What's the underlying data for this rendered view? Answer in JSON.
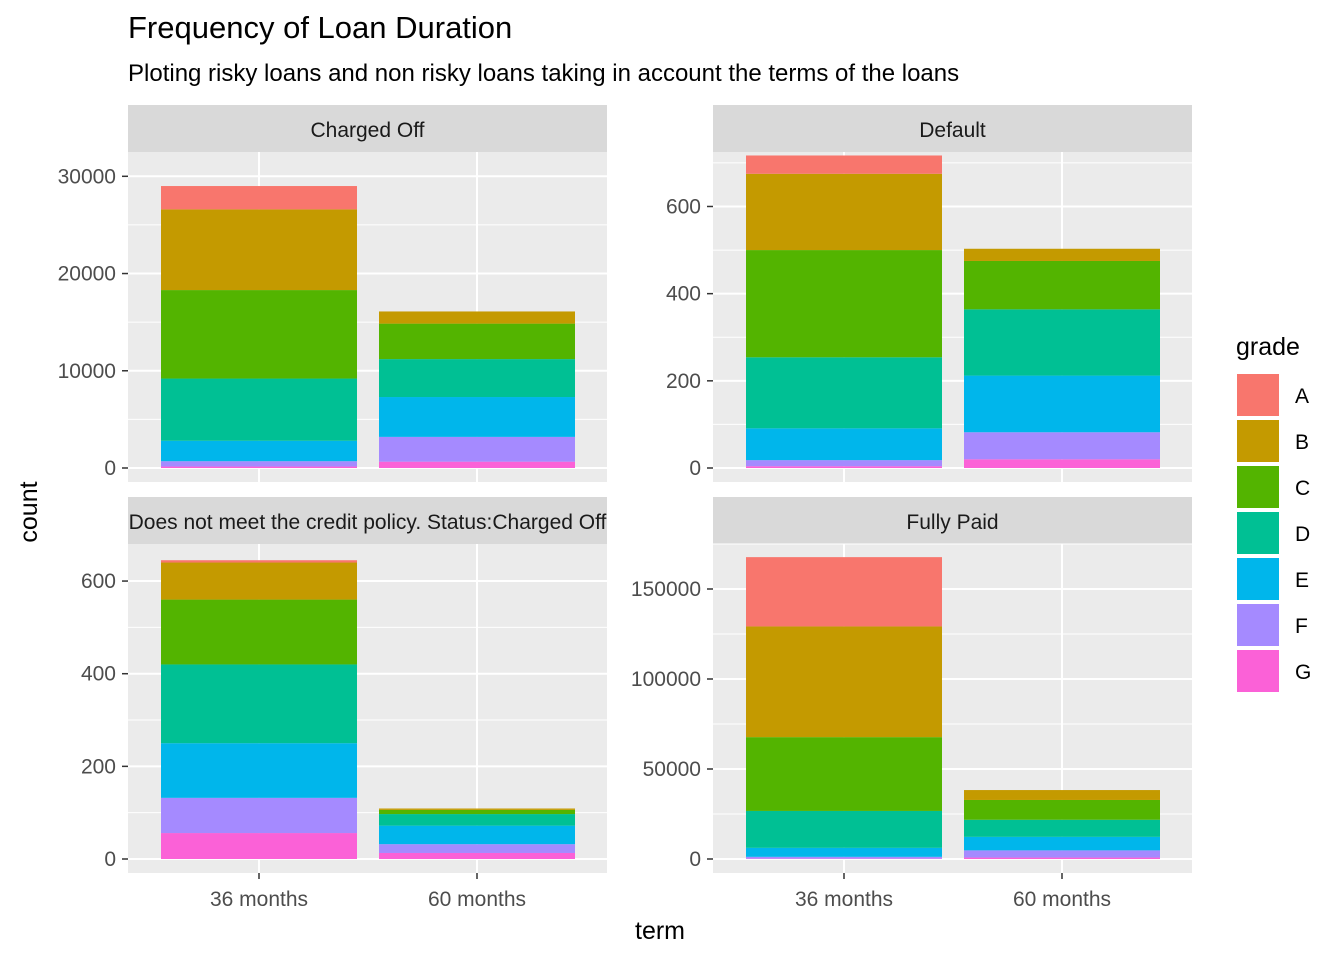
{
  "title": "Frequency of Loan Duration",
  "subtitle": "Ploting risky loans and non risky loans taking in account the terms of the loans",
  "chart_data": {
    "type": "bar",
    "stacked": true,
    "layout": "facet_wrap 2x2",
    "xlabel": "term",
    "ylabel": "count",
    "categories": [
      "36 months",
      "60 months"
    ],
    "legend": {
      "title": "grade",
      "position": "right",
      "entries": [
        "A",
        "B",
        "C",
        "D",
        "E",
        "F",
        "G"
      ]
    },
    "colors": {
      "A": "#F8766D",
      "B": "#C49A00",
      "C": "#53B400",
      "D": "#00C094",
      "E": "#00B6EB",
      "F": "#A58AFF",
      "G": "#FB61D7"
    },
    "panel_background": "#EBEBEB",
    "strip_background": "#D9D9D9",
    "grid": true,
    "facets": [
      {
        "label": "Charged Off",
        "ylim": [
          0,
          32500
        ],
        "yticks": [
          0,
          10000,
          20000,
          30000
        ],
        "series": [
          {
            "name": "A",
            "values": [
              2400,
              0
            ]
          },
          {
            "name": "B",
            "values": [
              8300,
              1250
            ]
          },
          {
            "name": "C",
            "values": [
              9100,
              3650
            ]
          },
          {
            "name": "D",
            "values": [
              6400,
              3900
            ]
          },
          {
            "name": "E",
            "values": [
              2100,
              4100
            ]
          },
          {
            "name": "F",
            "values": [
              550,
              2550
            ]
          },
          {
            "name": "G",
            "values": [
              150,
              650
            ]
          }
        ]
      },
      {
        "label": "Default",
        "ylim": [
          0,
          725
        ],
        "yticks": [
          0,
          200,
          400,
          600
        ],
        "series": [
          {
            "name": "A",
            "values": [
              42,
              0
            ]
          },
          {
            "name": "B",
            "values": [
              175,
              28
            ]
          },
          {
            "name": "C",
            "values": [
              246,
              111
            ]
          },
          {
            "name": "D",
            "values": [
              163,
              152
            ]
          },
          {
            "name": "E",
            "values": [
              73,
              130
            ]
          },
          {
            "name": "F",
            "values": [
              14,
              62
            ]
          },
          {
            "name": "G",
            "values": [
              4,
              20
            ]
          }
        ]
      },
      {
        "label": "Does not meet the credit policy. Status:Charged Off",
        "ylim": [
          0,
          680
        ],
        "yticks": [
          0,
          200,
          400,
          600
        ],
        "series": [
          {
            "name": "A",
            "values": [
              5,
              0
            ]
          },
          {
            "name": "B",
            "values": [
              80,
              3
            ]
          },
          {
            "name": "C",
            "values": [
              140,
              9
            ]
          },
          {
            "name": "D",
            "values": [
              170,
              25
            ]
          },
          {
            "name": "E",
            "values": [
              118,
              40
            ]
          },
          {
            "name": "F",
            "values": [
              76,
              19
            ]
          },
          {
            "name": "G",
            "values": [
              56,
              13
            ]
          }
        ]
      },
      {
        "label": "Fully Paid",
        "ylim": [
          0,
          175000
        ],
        "yticks": [
          0,
          50000,
          100000,
          150000
        ],
        "series": [
          {
            "name": "A",
            "values": [
              38500,
              0
            ]
          },
          {
            "name": "B",
            "values": [
              61500,
              5500
            ]
          },
          {
            "name": "C",
            "values": [
              41000,
              11000
            ]
          },
          {
            "name": "D",
            "values": [
              20500,
              9500
            ]
          },
          {
            "name": "E",
            "values": [
              5000,
              7500
            ]
          },
          {
            "name": "F",
            "values": [
              1000,
              4000
            ]
          },
          {
            "name": "G",
            "values": [
              200,
              800
            ]
          }
        ]
      }
    ]
  }
}
